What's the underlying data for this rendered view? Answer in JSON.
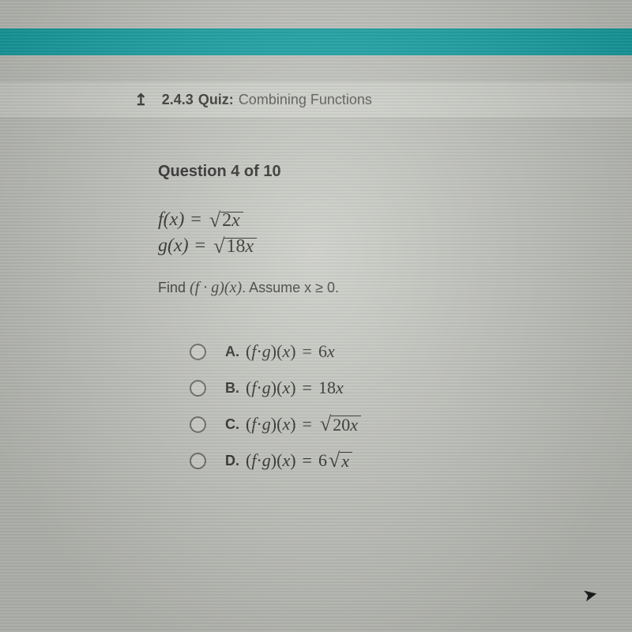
{
  "colors": {
    "teal": "#1aa8ab",
    "page_bg": "#c8cac4",
    "header_bg": "#d6d8d2",
    "text": "#2d2d2d"
  },
  "header": {
    "back_icon": "↥",
    "number": "2.4.3",
    "label": "Quiz:",
    "title": "Combining Functions"
  },
  "question": {
    "heading": "Question 4 of 10",
    "f_lhs": "f(x)",
    "f_eq": "=",
    "f_radicand_num": "2",
    "f_radicand_var": "x",
    "g_lhs": "g(x)",
    "g_eq": "=",
    "g_radicand_num": "18",
    "g_radicand_var": "x",
    "find_prefix": "Find ",
    "find_expr": "(f · g)(x)",
    "find_suffix": ". Assume x ≥ 0."
  },
  "options": {
    "a": {
      "letter": "A.",
      "lhs": "(f · g)(x)",
      "eq": "=",
      "rhs_plain": "6",
      "rhs_var": "x"
    },
    "b": {
      "letter": "B.",
      "lhs": "(f · g)(x)",
      "eq": "=",
      "rhs_plain": "18",
      "rhs_var": "x"
    },
    "c": {
      "letter": "C.",
      "lhs": "(f · g)(x)",
      "eq": "=",
      "rad_num": "20",
      "rad_var": "x"
    },
    "d": {
      "letter": "D.",
      "lhs": "(f · g)(x)",
      "eq": "=",
      "coef": "6",
      "rad_var": "x"
    }
  }
}
